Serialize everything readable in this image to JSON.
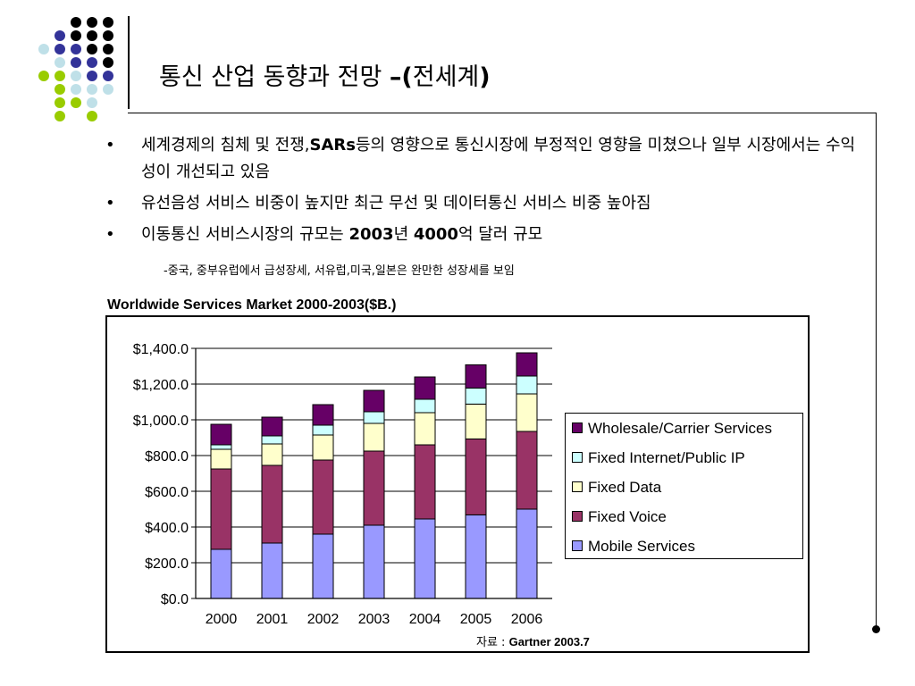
{
  "slide": {
    "title_main": "통신 산업 동향과 전망 ",
    "title_bold": "–(",
    "title_region": "전세계",
    "title_close": ")"
  },
  "bullets": [
    {
      "marker": "•",
      "pre": "세계경제의 침체 및 전쟁,",
      "bold": "SARs",
      "post": "등의 영향으로 통신시장에 부정적인 영향을 미쳤으나 일부 시장에서는 수익성이 개선되고 있음"
    },
    {
      "marker": "•",
      "pre": "유선음성 서비스 비중이 높지만 최근 무선 및 데이터통신 서비스 비중 높아짐",
      "bold": "",
      "post": ""
    },
    {
      "marker": "•",
      "pre": "이동통신 서비스시장의 규모는 ",
      "bold": "2003",
      "post": "년 ",
      "bold2": "4000",
      "post2": "억 달러 규모"
    }
  ],
  "sub_note": "-중국, 중부유럽에서 급성장세, 서유럽,미국,일본은 완만한 성장세를 보임",
  "source": {
    "label": "자료 : ",
    "text": "Gartner 2003.7"
  },
  "colors": {
    "dot_black": "#000000",
    "dot_blue": "#333399",
    "dot_lightblue": "#bfe0e8",
    "dot_green": "#99cc00"
  },
  "chart_data": {
    "type": "bar",
    "stacked": true,
    "title": "Worldwide Services Market 2000-2003($B.)",
    "categories": [
      "2000",
      "2001",
      "2002",
      "2003",
      "2004",
      "2005",
      "2006"
    ],
    "ylim": [
      0,
      1400
    ],
    "ytick_labels": [
      "$0.0",
      "$200.0",
      "$400.0",
      "$600.0",
      "$800.0",
      "$1,000.0",
      "$1,200.0",
      "$1,400.0"
    ],
    "ytick_values": [
      0,
      200,
      400,
      600,
      800,
      1000,
      1200,
      1400
    ],
    "legend_position": "right",
    "series": [
      {
        "name": "Mobile Services",
        "color": "#9999ff",
        "values": [
          275,
          310,
          360,
          410,
          445,
          468,
          500
        ]
      },
      {
        "name": "Fixed Voice",
        "color": "#993366",
        "values": [
          450,
          435,
          415,
          415,
          415,
          425,
          435
        ]
      },
      {
        "name": "Fixed Data",
        "color": "#ffffcc",
        "values": [
          110,
          120,
          140,
          155,
          180,
          195,
          210
        ]
      },
      {
        "name": "Fixed Internet/Public IP",
        "color": "#ccffff",
        "values": [
          25,
          45,
          55,
          65,
          75,
          90,
          100
        ]
      },
      {
        "name": "Wholesale/Carrier Services",
        "color": "#660066",
        "values": [
          115,
          105,
          115,
          120,
          125,
          130,
          130
        ]
      }
    ]
  }
}
